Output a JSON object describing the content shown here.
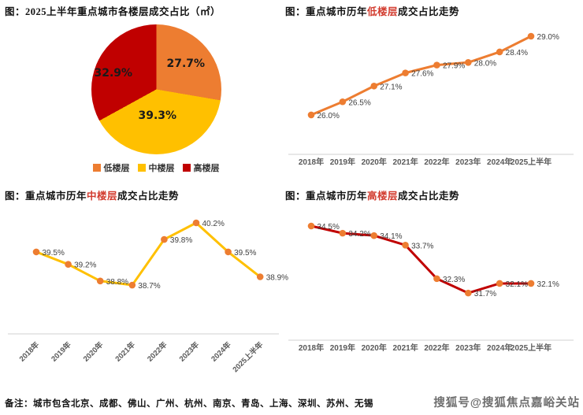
{
  "colors": {
    "series_orange": "#ED7D31",
    "series_yellow": "#FFC000",
    "series_red": "#C00000",
    "title_highlight": "#d23b2e",
    "value_label": "#404040",
    "tick_label": "#595959",
    "axis_line": "#D9D9D9",
    "watermark": "#6e6e6e"
  },
  "panels": {
    "pie": {
      "title": "图：2025上半年重点城市各楼层成交占比（㎡）"
    },
    "low": {
      "title_pre": "图：重点城市历年",
      "title_hl": "低楼层",
      "title_post": "成交占比走势"
    },
    "mid": {
      "title_pre": "图：重点城市历年",
      "title_hl": "中楼层",
      "title_post": "成交占比走势"
    },
    "high": {
      "title_pre": "图：重点城市历年",
      "title_hl": "高楼层",
      "title_post": "成交占比走势"
    }
  },
  "footer": {
    "note": "备注：城市包含北京、成都、佛山、广州、杭州、南京、青岛、上海、深圳、苏州、无锡",
    "watermark": "搜狐号@搜狐焦点嘉峪关站"
  },
  "chart_data": [
    {
      "type": "pie",
      "title": "2025上半年重点城市各楼层成交占比（㎡）",
      "labels": [
        "低楼层",
        "中楼层",
        "高楼层"
      ],
      "values": [
        27.7,
        39.3,
        32.9
      ],
      "display": [
        "27.7%",
        "39.3%",
        "32.9%"
      ],
      "colors": [
        "#ED7D31",
        "#FFC000",
        "#C00000"
      ],
      "start_angle": "12-oclock, clockwise",
      "legend_position": "bottom"
    },
    {
      "type": "line",
      "title": "重点城市历年低楼层成交占比走势",
      "categories": [
        "2018年",
        "2019年",
        "2020年",
        "2021年",
        "2022年",
        "2023年",
        "2024年",
        "2025上半年"
      ],
      "values": [
        26.0,
        26.5,
        27.1,
        27.6,
        27.9,
        28.0,
        28.4,
        29.0
      ],
      "unit": "%",
      "color": "#ED7D31",
      "marker_color": "#ED7D31",
      "ylim": [
        25.5,
        29.5
      ],
      "grid": false,
      "data_labels": true
    },
    {
      "type": "line",
      "title": "重点城市历年中楼层成交占比走势",
      "categories": [
        "2018年",
        "2019年",
        "2020年",
        "2021年",
        "2022年",
        "2023年",
        "2024年",
        "2025上半年"
      ],
      "values": [
        39.5,
        39.2,
        38.8,
        38.7,
        39.8,
        40.2,
        39.5,
        38.9
      ],
      "unit": "%",
      "color": "#FFC000",
      "marker_color": "#ED7D31",
      "ylim": [
        38.0,
        40.7
      ],
      "grid": false,
      "data_labels": true,
      "xticks_rotated": true
    },
    {
      "type": "line",
      "title": "重点城市历年高楼层成交占比走势",
      "categories": [
        "2018年",
        "2019年",
        "2020年",
        "2021年",
        "2022年",
        "2023年",
        "2024年",
        "2025上半年"
      ],
      "values": [
        34.5,
        34.2,
        34.1,
        33.7,
        32.3,
        31.7,
        32.1,
        32.1
      ],
      "unit": "%",
      "color": "#C00000",
      "marker_color": "#ED7D31",
      "ylim": [
        31.0,
        35.0
      ],
      "grid": false,
      "data_labels": true
    }
  ]
}
